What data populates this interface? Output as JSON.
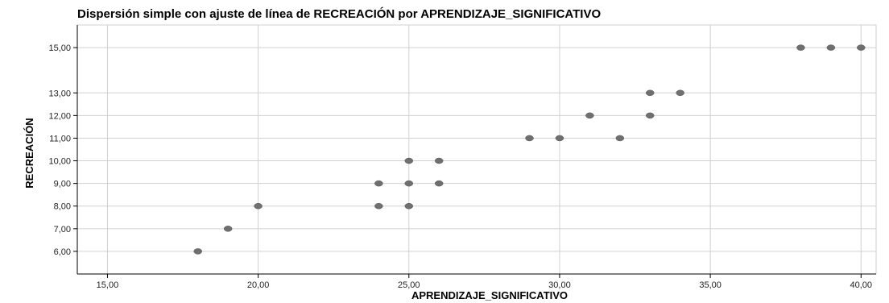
{
  "chart_data": {
    "type": "scatter",
    "title": "Dispersión simple con ajuste de línea de RECREACIÓN por APRENDIZAJE_SIGNIFICATIVO",
    "xlabel": "APRENDIZAJE_SIGNIFICATIVO",
    "ylabel": "RECREACIÓN",
    "xlim": [
      14,
      40.5
    ],
    "ylim": [
      5,
      16
    ],
    "x_ticks": [
      15,
      20,
      25,
      30,
      35,
      40
    ],
    "y_ticks": [
      6,
      7,
      8,
      9,
      10,
      11,
      12,
      13,
      15
    ],
    "x_tick_labels": [
      "15,00",
      "20,00",
      "25,00",
      "30,00",
      "35,00",
      "40,00"
    ],
    "y_tick_labels": [
      "6,00",
      "7,00",
      "8,00",
      "9,00",
      "10,00",
      "11,00",
      "12,00",
      "13,00",
      "15,00"
    ],
    "grid": true,
    "colors": {
      "marker": "#6f6f6f",
      "grid": "#d0d0d0",
      "axis": "#000000"
    },
    "points": [
      {
        "x": 18,
        "y": 6
      },
      {
        "x": 19,
        "y": 7
      },
      {
        "x": 20,
        "y": 8
      },
      {
        "x": 24,
        "y": 8
      },
      {
        "x": 25,
        "y": 8
      },
      {
        "x": 24,
        "y": 9
      },
      {
        "x": 25,
        "y": 9
      },
      {
        "x": 26,
        "y": 9
      },
      {
        "x": 25,
        "y": 10
      },
      {
        "x": 26,
        "y": 10
      },
      {
        "x": 29,
        "y": 11
      },
      {
        "x": 30,
        "y": 11
      },
      {
        "x": 32,
        "y": 11
      },
      {
        "x": 31,
        "y": 12
      },
      {
        "x": 33,
        "y": 12
      },
      {
        "x": 33,
        "y": 13
      },
      {
        "x": 34,
        "y": 13
      },
      {
        "x": 38,
        "y": 15
      },
      {
        "x": 39,
        "y": 15
      },
      {
        "x": 40,
        "y": 15
      }
    ]
  }
}
